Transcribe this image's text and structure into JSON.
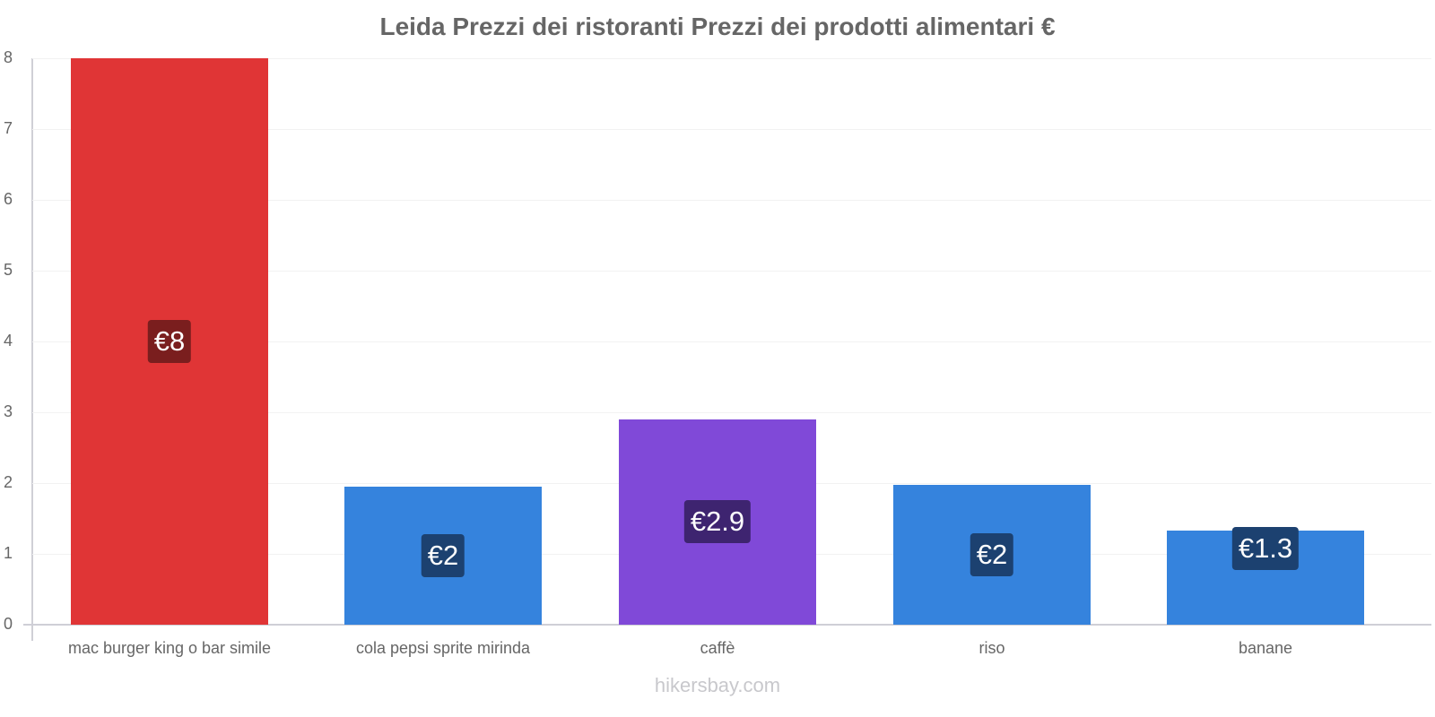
{
  "title": "Leida Prezzi dei ristoranti Prezzi dei prodotti alimentari €",
  "watermark": "hikersbay.com",
  "y_ticks": [
    "0",
    "1",
    "2",
    "3",
    "4",
    "5",
    "6",
    "7",
    "8"
  ],
  "bars": [
    {
      "category": "mac burger king o bar simile",
      "value": 8,
      "label": "€8",
      "color": "#e03536",
      "label_bg": "#7a1e1e"
    },
    {
      "category": "cola pepsi sprite mirinda",
      "value": 1.95,
      "label": "€2",
      "color": "#3583dd",
      "label_bg": "#1c4170"
    },
    {
      "category": "caffè",
      "value": 2.9,
      "label": "€2.9",
      "color": "#8049d8",
      "label_bg": "#3e2470"
    },
    {
      "category": "riso",
      "value": 1.97,
      "label": "€2",
      "color": "#3583dd",
      "label_bg": "#1c4170"
    },
    {
      "category": "banane",
      "value": 1.33,
      "label": "€1.3",
      "color": "#3583dd",
      "label_bg": "#1c4170"
    }
  ],
  "chart_data": {
    "type": "bar",
    "title": "Leida Prezzi dei ristoranti Prezzi dei prodotti alimentari €",
    "categories": [
      "mac burger king o bar simile",
      "cola pepsi sprite mirinda",
      "caffè",
      "riso",
      "banane"
    ],
    "values": [
      8,
      1.95,
      2.9,
      1.97,
      1.33
    ],
    "data_labels": [
      "€8",
      "€2",
      "€2.9",
      "€2",
      "€1.3"
    ],
    "colors": [
      "#e03536",
      "#3583dd",
      "#8049d8",
      "#3583dd",
      "#3583dd"
    ],
    "xlabel": "",
    "ylabel": "",
    "ylim": [
      0,
      8
    ],
    "yticks": [
      0,
      1,
      2,
      3,
      4,
      5,
      6,
      7,
      8
    ],
    "grid": true,
    "legend": null
  }
}
